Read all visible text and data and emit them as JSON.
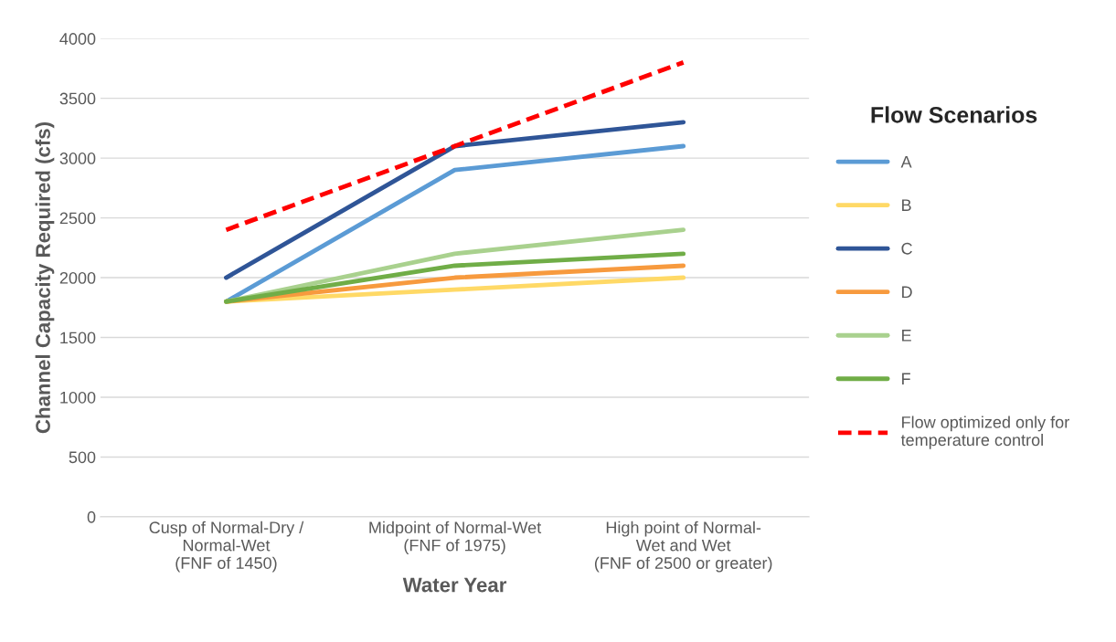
{
  "chart_data": {
    "type": "line",
    "xlabel": "Water Year",
    "ylabel": "Channel Capacity Required (cfs)",
    "legend_title": "Flow Scenarios",
    "categories": [
      "Cusp of Normal-Dry /\nNormal-Wet\n(FNF of 1450)",
      "Midpoint of Normal-Wet\n(FNF of 1975)",
      "High point of Normal-\nWet and Wet\n(FNF of 2500 or greater)"
    ],
    "series": [
      {
        "name": "A",
        "color": "#5b9bd5",
        "values": [
          1800,
          2900,
          3100
        ]
      },
      {
        "name": "B",
        "color": "#ffd966",
        "values": [
          1800,
          1900,
          2000
        ]
      },
      {
        "name": "C",
        "color": "#2f5597",
        "values": [
          2000,
          3100,
          3300
        ]
      },
      {
        "name": "D",
        "color": "#f79a3e",
        "values": [
          1800,
          2000,
          2100
        ]
      },
      {
        "name": "E",
        "color": "#a9d18e",
        "values": [
          1800,
          2200,
          2400
        ]
      },
      {
        "name": "F",
        "color": "#70ad47",
        "values": [
          1800,
          2100,
          2200
        ]
      },
      {
        "name": "Flow optimized only for\ntemperature control",
        "color": "#ff0000",
        "line_style": "dashed",
        "values": [
          2400,
          3100,
          3800
        ]
      }
    ],
    "ylim": [
      0,
      4000
    ],
    "yticks": [
      0,
      500,
      1000,
      1500,
      2000,
      2500,
      3000,
      3500,
      4000
    ],
    "grid": "y",
    "legend": "right",
    "marker": "none",
    "line_style": "solid"
  }
}
